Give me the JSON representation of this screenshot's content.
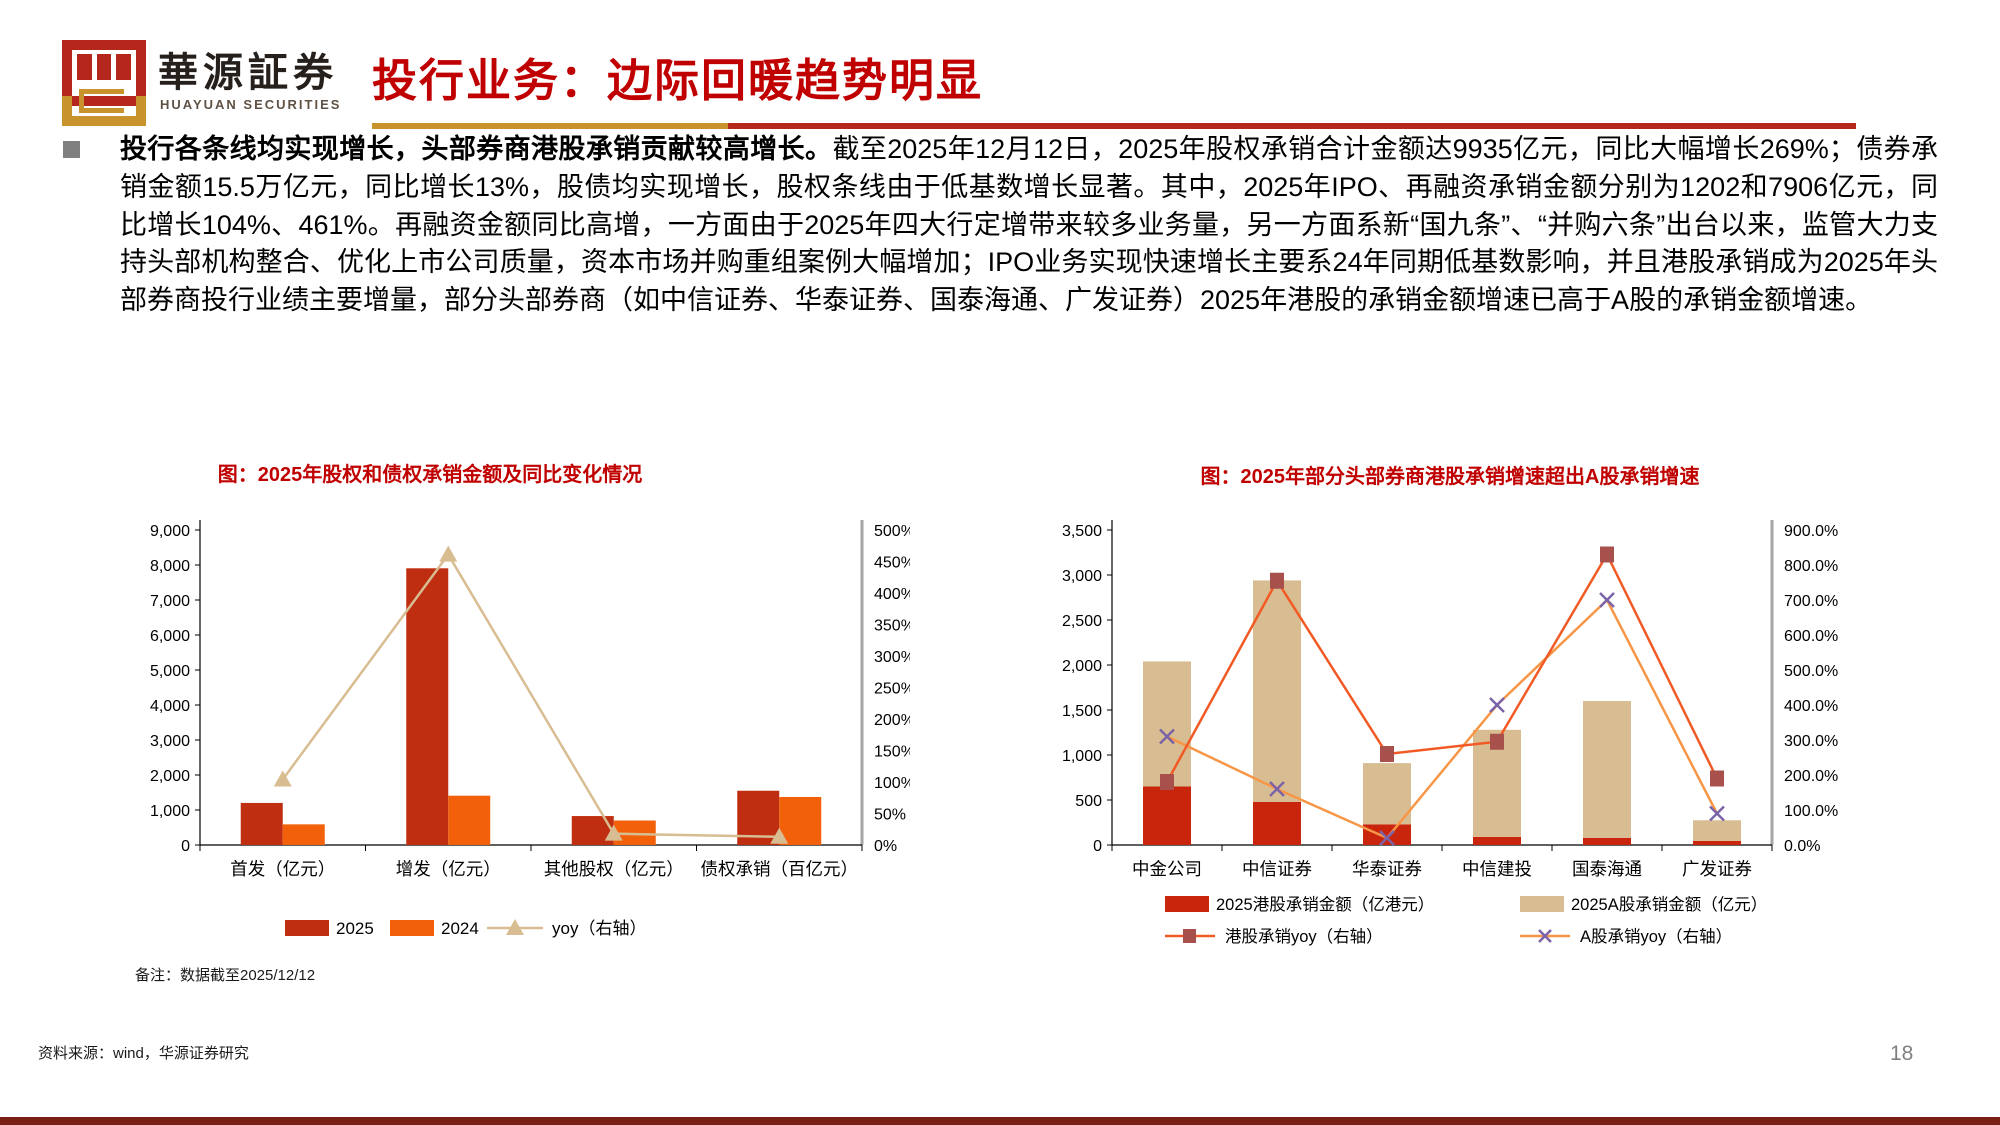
{
  "header": {
    "logo": {
      "brand_cn": "華源証券",
      "brand_en": "HUAYUAN SECURITIES"
    },
    "title": "投行业务：边际回暖趋势明显"
  },
  "body": {
    "bullet_bold": "投行各条线均实现增长，头部券商港股承销贡献较高增长。",
    "bullet_rest": "截至2025年12月12日，2025年股权承销合计金额达9935亿元，同比大幅增长269%；债券承销金额15.5万亿元，同比增长13%，股债均实现增长，股权条线由于低基数增长显著。其中，2025年IPO、再融资承销金额分别为1202和7906亿元，同比增长104%、461%。再融资金额同比高增，一方面由于2025年四大行定增带来较多业务量，另一方面系新“国九条”、“并购六条”出台以来，监管大力支持头部机构整合、优化上市公司质量，资本市场并购重组案例大幅增加；IPO业务实现快速增长主要系24年同期低基数影响，并且港股承销成为2025年头部券商投行业绩主要增量，部分头部券商（如中信证券、华泰证券、国泰海通、广发证券）2025年港股的承销金额增速已高于A股的承销金额增速。"
  },
  "chart_data": [
    {
      "type": "bar",
      "title": "图：2025年股权和债权承销金额及同比变化情况",
      "categories": [
        "首发（亿元）",
        "增发（亿元）",
        "其他股权（亿元）",
        "债权承销（百亿元）"
      ],
      "series": [
        {
          "name": "2025",
          "kind": "bar",
          "axis": "left",
          "values": [
            1202,
            7906,
            827,
            1550
          ]
        },
        {
          "name": "2024",
          "kind": "bar",
          "axis": "left",
          "values": [
            590,
            1409,
            700,
            1372
          ]
        },
        {
          "name": "yoy（右轴）",
          "kind": "line",
          "axis": "right",
          "values": [
            104,
            461,
            18,
            13
          ]
        }
      ],
      "left_axis": {
        "min": 0,
        "max": 9000,
        "step": 1000
      },
      "right_axis": {
        "min": 0,
        "max": 500,
        "step": 50,
        "suffix": "%"
      },
      "legend_position": "bottom",
      "grid": false
    },
    {
      "type": "bar",
      "title": "图：2025年部分头部券商港股承销增速超出A股承销增速",
      "categories": [
        "中金公司",
        "中信证券",
        "华泰证券",
        "中信建投",
        "国泰海通",
        "广发证券"
      ],
      "series": [
        {
          "name": "2025港股承销金额（亿港元）",
          "kind": "bar-stack",
          "axis": "left",
          "values": [
            650,
            480,
            230,
            90,
            80,
            45
          ]
        },
        {
          "name": "2025A股承销金额（亿元）",
          "kind": "bar-stack",
          "axis": "left",
          "values": [
            1390,
            2460,
            680,
            1190,
            1520,
            230
          ]
        },
        {
          "name": "港股承销yoy（右轴）",
          "kind": "line",
          "axis": "right",
          "values": [
            180,
            755,
            260,
            295,
            830,
            190
          ]
        },
        {
          "name": "A股承销yoy（右轴）",
          "kind": "line",
          "axis": "right",
          "values": [
            310,
            160,
            20,
            400,
            700,
            90
          ]
        }
      ],
      "left_axis": {
        "min": 0,
        "max": 3500,
        "step": 500
      },
      "right_axis": {
        "min": 0,
        "max": 900,
        "step": 100,
        "suffix": ".0%"
      },
      "legend_position": "bottom",
      "grid": false
    }
  ],
  "footnotes": {
    "note": "备注：数据截至2025/12/12",
    "source": "资料来源：wind，华源证券研究",
    "page": "18"
  },
  "colors": {
    "accent_red": "#c00000",
    "gold": "#c8932c",
    "bar_2025": "#bf2e11",
    "bar_2024": "#f2600a",
    "yoy_line": "#d9bd92",
    "bar_hk": "#c8250c",
    "bar_a": "#d9bd92",
    "hk_line": "#f15a24",
    "hk_marker": "#a8504c",
    "a_line": "#f79646",
    "a_marker": "#7a63a8",
    "axis_gray": "#a6a6a6",
    "footer": "#7a1f14"
  }
}
